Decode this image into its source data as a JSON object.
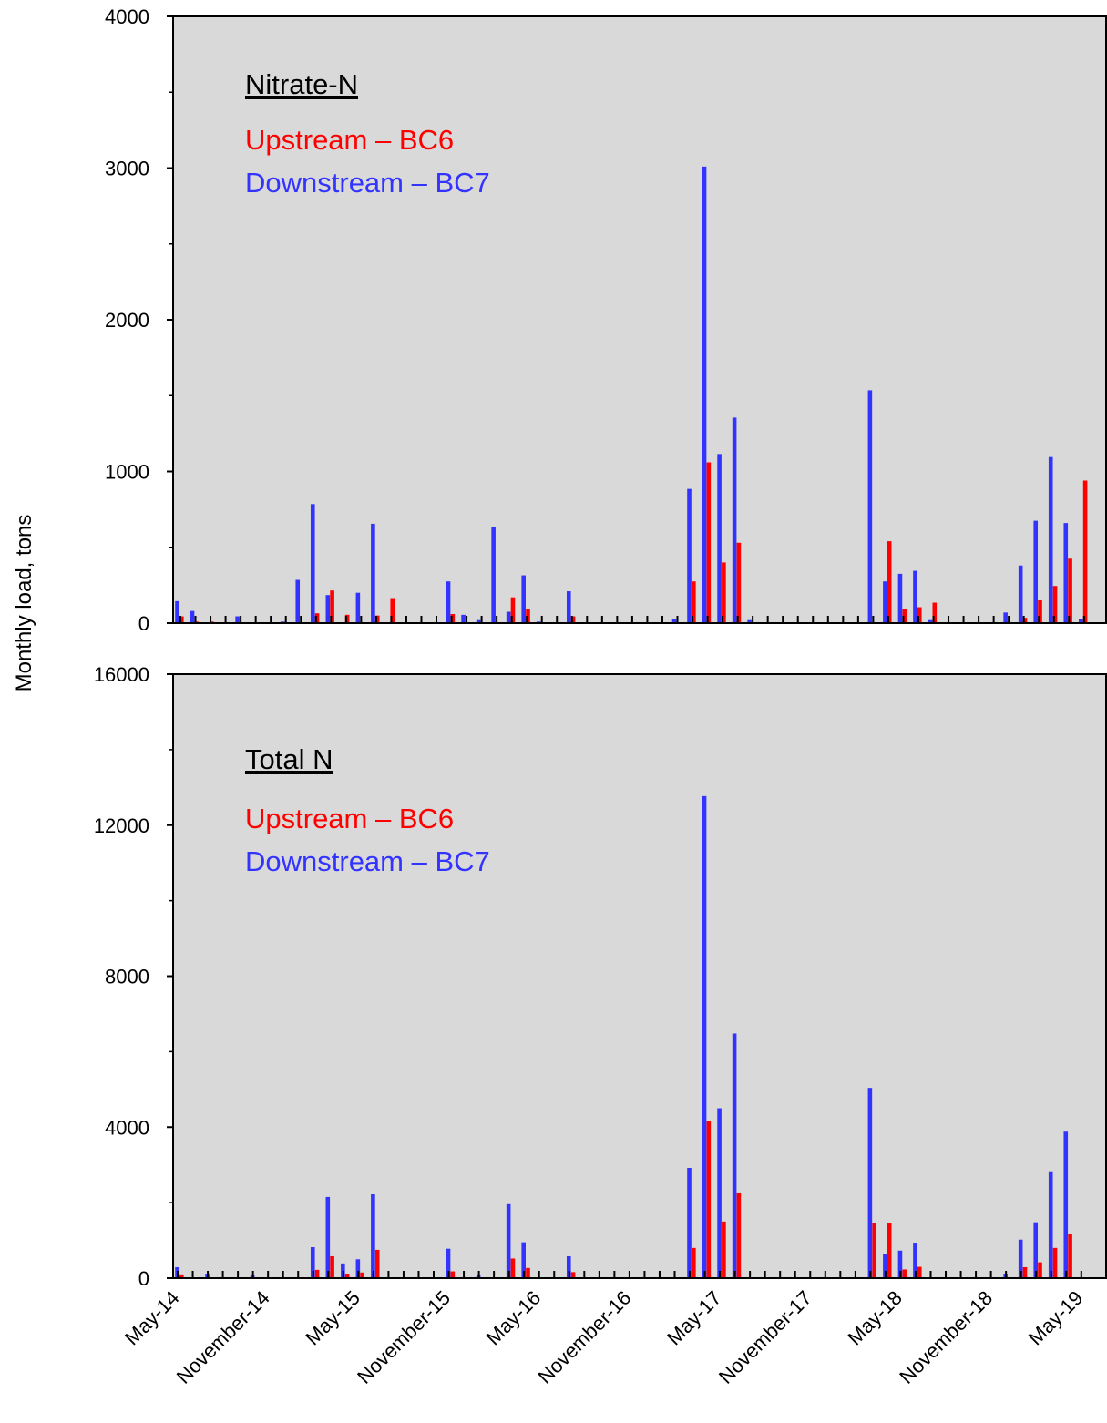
{
  "y_axis_label": "Monthly load, tons",
  "x_tick_labels": [
    "May-14",
    "November-14",
    "May-15",
    "November-15",
    "May-16",
    "November-16",
    "May-17",
    "November-17",
    "May-18",
    "November-18",
    "May-19"
  ],
  "colors": {
    "upstream": "#ff0000",
    "downstream": "#3333ff",
    "plot_bg": "#d9d9d9"
  },
  "chart_data": [
    {
      "type": "bar",
      "title": "Nitrate-N",
      "ylabel": "Monthly load, tons",
      "ylim": [
        0,
        4000
      ],
      "yticks": [
        0,
        1000,
        2000,
        3000,
        4000
      ],
      "xlabel": "",
      "legend": "top-left",
      "grid": false,
      "x": [
        "2014-05",
        "2014-06",
        "2014-07",
        "2014-08",
        "2014-09",
        "2014-10",
        "2014-11",
        "2014-12",
        "2015-01",
        "2015-02",
        "2015-03",
        "2015-04",
        "2015-05",
        "2015-06",
        "2015-07",
        "2015-08",
        "2015-09",
        "2015-10",
        "2015-11",
        "2015-12",
        "2016-01",
        "2016-02",
        "2016-03",
        "2016-04",
        "2016-05",
        "2016-06",
        "2016-07",
        "2016-08",
        "2016-09",
        "2016-10",
        "2016-11",
        "2016-12",
        "2017-01",
        "2017-02",
        "2017-03",
        "2017-04",
        "2017-05",
        "2017-06",
        "2017-07",
        "2017-08",
        "2017-09",
        "2017-10",
        "2017-11",
        "2017-12",
        "2018-01",
        "2018-02",
        "2018-03",
        "2018-04",
        "2018-05",
        "2018-06",
        "2018-07",
        "2018-08",
        "2018-09",
        "2018-10",
        "2018-11",
        "2018-12",
        "2019-01",
        "2019-02",
        "2019-03",
        "2019-04",
        "2019-05"
      ],
      "series": [
        {
          "name": "Upstream – BC6",
          "values": [
            45,
            10,
            10,
            5,
            5,
            5,
            5,
            5,
            5,
            65,
            215,
            55,
            5,
            50,
            165,
            5,
            5,
            5,
            60,
            5,
            5,
            5,
            170,
            90,
            5,
            5,
            45,
            5,
            5,
            5,
            5,
            5,
            5,
            5,
            275,
            1060,
            400,
            530,
            5,
            5,
            5,
            5,
            5,
            5,
            5,
            5,
            5,
            540,
            95,
            105,
            135,
            5,
            5,
            5,
            5,
            5,
            35,
            150,
            245,
            425,
            940
          ]
        },
        {
          "name": "Downstream – BC7",
          "values": [
            145,
            80,
            5,
            5,
            45,
            5,
            5,
            10,
            285,
            785,
            185,
            5,
            200,
            655,
            5,
            5,
            5,
            5,
            275,
            55,
            20,
            635,
            75,
            315,
            10,
            5,
            210,
            5,
            5,
            5,
            5,
            5,
            5,
            30,
            885,
            3010,
            1115,
            1355,
            20,
            5,
            5,
            5,
            5,
            5,
            5,
            5,
            1535,
            275,
            325,
            345,
            20,
            5,
            5,
            5,
            5,
            70,
            380,
            675,
            1095,
            660,
            30
          ]
        }
      ]
    },
    {
      "type": "bar",
      "title": "Total N",
      "ylabel": "Monthly load, tons",
      "ylim": [
        0,
        16000
      ],
      "yticks": [
        0,
        4000,
        8000,
        12000,
        16000
      ],
      "xlabel": "",
      "legend": "top-left",
      "grid": false,
      "x": [
        "2014-05",
        "2014-06",
        "2014-07",
        "2014-08",
        "2014-09",
        "2014-10",
        "2014-11",
        "2014-12",
        "2015-01",
        "2015-02",
        "2015-03",
        "2015-04",
        "2015-05",
        "2015-06",
        "2015-07",
        "2015-08",
        "2015-09",
        "2015-10",
        "2015-11",
        "2015-12",
        "2016-01",
        "2016-02",
        "2016-03",
        "2016-04",
        "2016-05",
        "2016-06",
        "2016-07",
        "2016-08",
        "2016-09",
        "2016-10",
        "2016-11",
        "2016-12",
        "2017-01",
        "2017-02",
        "2017-03",
        "2017-04",
        "2017-05",
        "2017-06",
        "2017-07",
        "2017-08",
        "2017-09",
        "2017-10",
        "2017-11",
        "2017-12",
        "2018-01",
        "2018-02",
        "2018-03",
        "2018-04",
        "2018-05",
        "2018-06",
        "2018-07",
        "2018-08",
        "2018-09",
        "2018-10",
        "2018-11",
        "2018-12",
        "2019-01",
        "2019-02",
        "2019-03",
        "2019-04",
        "2019-05"
      ],
      "series": [
        {
          "name": "Upstream – BC6",
          "values": [
            100,
            5,
            20,
            5,
            5,
            5,
            5,
            5,
            5,
            220,
            580,
            120,
            150,
            750,
            5,
            5,
            5,
            5,
            180,
            5,
            5,
            5,
            520,
            270,
            5,
            5,
            160,
            5,
            5,
            5,
            5,
            5,
            5,
            5,
            800,
            4150,
            1500,
            2270,
            5,
            5,
            5,
            5,
            5,
            5,
            5,
            5,
            1450,
            1450,
            230,
            300,
            5,
            5,
            5,
            5,
            5,
            5,
            290,
            420,
            800,
            1170,
            5
          ]
        },
        {
          "name": "Downstream – BC7",
          "values": [
            290,
            5,
            120,
            5,
            5,
            80,
            5,
            5,
            5,
            820,
            2150,
            390,
            500,
            2220,
            5,
            5,
            5,
            5,
            780,
            5,
            90,
            5,
            1960,
            950,
            5,
            5,
            580,
            5,
            5,
            5,
            5,
            5,
            5,
            5,
            2920,
            12770,
            4500,
            6480,
            5,
            5,
            5,
            5,
            5,
            5,
            5,
            5,
            5040,
            640,
            730,
            940,
            5,
            5,
            5,
            5,
            5,
            120,
            1020,
            1480,
            2830,
            3880,
            5
          ]
        }
      ]
    }
  ]
}
